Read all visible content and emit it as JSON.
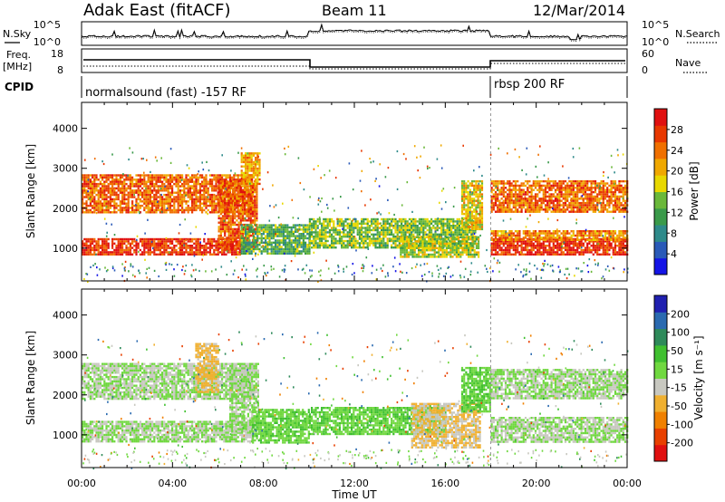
{
  "header": {
    "title": "Adak East (fitACF)",
    "beam": "Beam 11",
    "date": "12/Mar/2014"
  },
  "panels": {
    "nsky_label": "N.Sky",
    "nsky_ticks": [
      "10^5",
      "10^0"
    ],
    "nsearch_label": "N.Search",
    "freq_label_1": "Freq.",
    "freq_label_2": "[MHz]",
    "freq_ticks": [
      "18",
      "8"
    ],
    "nave_label": "Nave",
    "nave_ticks": [
      "60",
      "0"
    ],
    "cpid_label": "CPID",
    "cpid_modes": [
      {
        "label": "normalsound (fast) -157 RF",
        "start": "00:00",
        "end": "18:00"
      },
      {
        "label": "rbsp 200 RF",
        "start": "18:00",
        "end": "24:00"
      }
    ]
  },
  "x_axis": {
    "label": "Time UT",
    "ticks": [
      "00:00",
      "04:00",
      "08:00",
      "12:00",
      "16:00",
      "20:00",
      "00:00"
    ],
    "range_hours": [
      0,
      24
    ]
  },
  "y_axis": {
    "label": "Slant Range [km]",
    "ticks": [
      "1000",
      "2000",
      "3000",
      "4000"
    ],
    "range_km": [
      180,
      4650
    ]
  },
  "power_scale": {
    "label": "Power [dB]",
    "ticks": [
      "4",
      "8",
      "12",
      "16",
      "20",
      "24",
      "28"
    ],
    "colors": [
      "#1414e6",
      "#2a5ab8",
      "#2e8a8a",
      "#3a9a4a",
      "#6ab83a",
      "#e8d800",
      "#f0a800",
      "#f07000",
      "#e83800",
      "#e01010"
    ]
  },
  "velocity_scale": {
    "label": "Velocity [m s⁻¹]",
    "ticks": [
      "200",
      "100",
      "50",
      "15",
      "-15",
      "-50",
      "-100",
      "-200"
    ],
    "colors": [
      "#2020b0",
      "#2a6ab0",
      "#2e8a5a",
      "#40c030",
      "#70d840",
      "#c8c8c0",
      "#f0b030",
      "#f08000",
      "#e84000",
      "#e01010"
    ]
  },
  "chart_data": [
    {
      "type": "heatmap",
      "title": "Power",
      "xlabel": "Time UT",
      "ylabel": "Slant Range [km]",
      "xlim": [
        0,
        24
      ],
      "ylim": [
        180,
        4650
      ],
      "colorbar_label": "Power [dB]",
      "colorbar_range": [
        0,
        31
      ],
      "regions": [
        {
          "t0": 0.0,
          "t1": 7.0,
          "r0": 850,
          "r1": 1250,
          "value": 27
        },
        {
          "t0": 0.0,
          "t1": 7.5,
          "r0": 1900,
          "r1": 2850,
          "value": 24
        },
        {
          "t0": 6.0,
          "t1": 7.7,
          "r0": 1000,
          "r1": 2700,
          "value": 25
        },
        {
          "t0": 7.0,
          "t1": 7.8,
          "r0": 2600,
          "r1": 3400,
          "value": 20
        },
        {
          "t0": 7.0,
          "t1": 10.0,
          "r0": 850,
          "r1": 1600,
          "value": 12
        },
        {
          "t0": 10.0,
          "t1": 17.3,
          "r0": 1000,
          "r1": 1750,
          "value": 14
        },
        {
          "t0": 14.0,
          "t1": 17.5,
          "r0": 800,
          "r1": 1300,
          "value": 16
        },
        {
          "t0": 16.7,
          "t1": 17.6,
          "r0": 1500,
          "r1": 2700,
          "value": 18
        },
        {
          "t0": 18.0,
          "t1": 24.0,
          "r0": 850,
          "r1": 1250,
          "value": 28
        },
        {
          "t0": 18.0,
          "t1": 24.0,
          "r0": 1900,
          "r1": 2700,
          "value": 24
        },
        {
          "t0": 18.0,
          "t1": 24.0,
          "r0": 1200,
          "r1": 1450,
          "value": 22
        }
      ]
    },
    {
      "type": "heatmap",
      "title": "Velocity",
      "xlabel": "Time UT",
      "ylabel": "Slant Range [km]",
      "xlim": [
        0,
        24
      ],
      "ylim": [
        180,
        4650
      ],
      "colorbar_label": "Velocity [m s⁻¹]",
      "colorbar_range": [
        -250,
        250
      ],
      "regions": [
        {
          "t0": 0.0,
          "t1": 7.5,
          "r0": 850,
          "r1": 1350,
          "value": 0
        },
        {
          "t0": 0.0,
          "t1": 7.5,
          "r0": 1900,
          "r1": 2800,
          "value": 0
        },
        {
          "t0": 5.0,
          "t1": 6.0,
          "r0": 2100,
          "r1": 3300,
          "value": -60
        },
        {
          "t0": 6.5,
          "t1": 7.8,
          "r0": 1100,
          "r1": 2800,
          "value": 0
        },
        {
          "t0": 7.5,
          "t1": 10.0,
          "r0": 800,
          "r1": 1650,
          "value": 40
        },
        {
          "t0": 10.0,
          "t1": 16.0,
          "r0": 1000,
          "r1": 1700,
          "value": 45
        },
        {
          "t0": 14.5,
          "t1": 17.5,
          "r0": 700,
          "r1": 1800,
          "value": -50
        },
        {
          "t0": 16.7,
          "t1": 18.0,
          "r0": 1600,
          "r1": 2700,
          "value": 45
        },
        {
          "t0": 18.0,
          "t1": 24.0,
          "r0": 850,
          "r1": 1450,
          "value": 0
        },
        {
          "t0": 18.0,
          "t1": 24.0,
          "r0": 1900,
          "r1": 2650,
          "value": 0
        }
      ]
    }
  ]
}
